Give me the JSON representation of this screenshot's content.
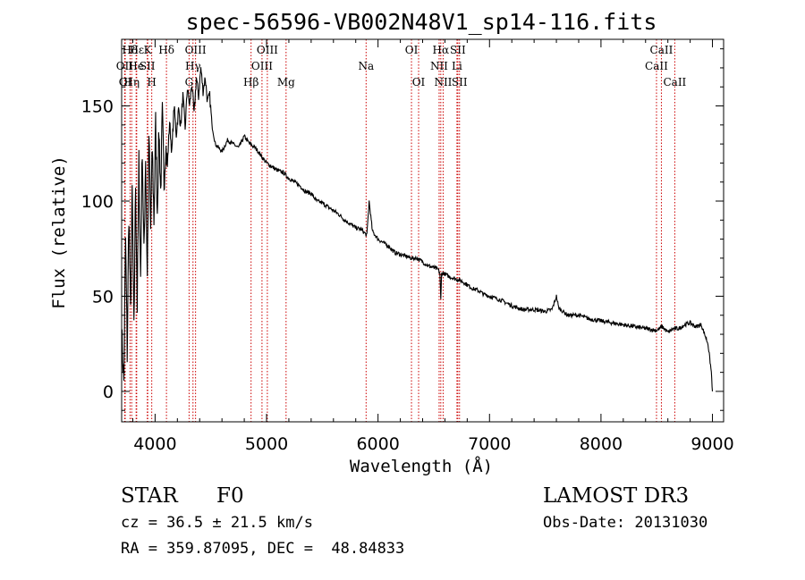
{
  "chart_data": {
    "type": "line",
    "title": "spec-56596-VB002N48V1_sp14-116.fits",
    "xlabel": "Wavelength (Å)",
    "ylabel": "Flux (relative)",
    "xlim": [
      3700,
      9100
    ],
    "ylim": [
      -16,
      185
    ],
    "xticks": [
      4000,
      5000,
      6000,
      7000,
      8000,
      9000
    ],
    "yticks": [
      0,
      50,
      100,
      150
    ],
    "series": [
      {
        "name": "flux",
        "x": [
          3700,
          3720,
          3735,
          3750,
          3765,
          3780,
          3795,
          3810,
          3825,
          3840,
          3855,
          3870,
          3885,
          3900,
          3915,
          3930,
          3945,
          3960,
          3975,
          3990,
          4005,
          4020,
          4035,
          4050,
          4065,
          4080,
          4095,
          4110,
          4130,
          4150,
          4170,
          4190,
          4210,
          4230,
          4250,
          4270,
          4290,
          4310,
          4330,
          4350,
          4370,
          4390,
          4410,
          4430,
          4450,
          4470,
          4490,
          4510,
          4540,
          4570,
          4600,
          4650,
          4700,
          4750,
          4800,
          4850,
          4900,
          4950,
          5000,
          5050,
          5100,
          5150,
          5200,
          5250,
          5300,
          5350,
          5400,
          5450,
          5500,
          5550,
          5600,
          5650,
          5700,
          5750,
          5800,
          5850,
          5900,
          5920,
          5950,
          6000,
          6050,
          6100,
          6150,
          6200,
          6250,
          6300,
          6350,
          6400,
          6450,
          6500,
          6540,
          6555,
          6563,
          6570,
          6590,
          6620,
          6650,
          6700,
          6750,
          6800,
          6850,
          6900,
          6950,
          7000,
          7100,
          7200,
          7300,
          7400,
          7500,
          7560,
          7600,
          7620,
          7660,
          7700,
          7800,
          7900,
          8000,
          8100,
          8200,
          8300,
          8400,
          8500,
          8550,
          8600,
          8650,
          8700,
          8750,
          8800,
          8850,
          8900,
          8930,
          8960,
          8990,
          9000
        ],
        "values": [
          30,
          5,
          80,
          20,
          95,
          40,
          105,
          30,
          110,
          45,
          120,
          60,
          130,
          70,
          125,
          60,
          135,
          85,
          128,
          90,
          140,
          95,
          138,
          105,
          145,
          110,
          130,
          118,
          142,
          125,
          150,
          135,
          148,
          140,
          155,
          138,
          160,
          150,
          162,
          145,
          165,
          155,
          170,
          158,
          165,
          152,
          155,
          140,
          130,
          128,
          126,
          132,
          130,
          128,
          134,
          130,
          128,
          124,
          120,
          118,
          116,
          115,
          112,
          110,
          108,
          105,
          104,
          100,
          99,
          97,
          95,
          93,
          90,
          88,
          86,
          85,
          82,
          100,
          84,
          80,
          78,
          76,
          73,
          72,
          71,
          70,
          70,
          68,
          66,
          65,
          64,
          62,
          48,
          62,
          62,
          61,
          60,
          59,
          58,
          56,
          54,
          53,
          51,
          50,
          48,
          45,
          43,
          43,
          42,
          43,
          50,
          44,
          42,
          40,
          40,
          38,
          37,
          36,
          35,
          34,
          33,
          32,
          34,
          31,
          33,
          33,
          35,
          36,
          34,
          35,
          30,
          25,
          10,
          0
        ]
      }
    ],
    "line_labels": [
      {
        "text": "Hδ",
        "x": 3775,
        "row": 0
      },
      {
        "text": "OII",
        "x": 3727,
        "row": 1
      },
      {
        "text": "OI",
        "x": 3732,
        "row": 2
      },
      {
        "text": "Hε",
        "x": 3835,
        "row": 0
      },
      {
        "text": "He",
        "x": 3830,
        "row": 1
      },
      {
        "text": "Hη",
        "x": 3790,
        "row": 2
      },
      {
        "text": "K",
        "x": 3934,
        "row": 0
      },
      {
        "text": "SII",
        "x": 3930,
        "row": 1
      },
      {
        "text": "H",
        "x": 3970,
        "row": 2
      },
      {
        "text": "Hδ",
        "x": 4102,
        "row": 0
      },
      {
        "text": "OIII",
        "x": 4363,
        "row": 0
      },
      {
        "text": "Hγ",
        "x": 4340,
        "row": 1
      },
      {
        "text": "G",
        "x": 4305,
        "row": 2
      },
      {
        "text": "OIII",
        "x": 5007,
        "row": 0
      },
      {
        "text": "OIII",
        "x": 4959,
        "row": 1
      },
      {
        "text": "Hβ",
        "x": 4861,
        "row": 2
      },
      {
        "text": "Mg",
        "x": 5175,
        "row": 2
      },
      {
        "text": "Na",
        "x": 5893,
        "row": 1
      },
      {
        "text": "OI",
        "x": 6300,
        "row": 0
      },
      {
        "text": "OI",
        "x": 6364,
        "row": 2
      },
      {
        "text": "Hα",
        "x": 6563,
        "row": 0
      },
      {
        "text": "SII",
        "x": 6716,
        "row": 0
      },
      {
        "text": "NII",
        "x": 6548,
        "row": 1
      },
      {
        "text": "Li",
        "x": 6708,
        "row": 1
      },
      {
        "text": "NII",
        "x": 6584,
        "row": 2
      },
      {
        "text": "SII",
        "x": 6731,
        "row": 2
      },
      {
        "text": "CaII",
        "x": 8542,
        "row": 0
      },
      {
        "text": "CaII",
        "x": 8498,
        "row": 1
      },
      {
        "text": "CaII",
        "x": 8662,
        "row": 2
      }
    ]
  },
  "info": {
    "class": "STAR",
    "subclass": "F0",
    "survey": "LAMOST DR3",
    "cz": "cz = 36.5 ± 21.5 km/s",
    "obs_date": "Obs-Date: 20131030",
    "radec": "RA = 359.87095, DEC =  48.84833"
  },
  "colors": {
    "line_marker": "#cc0000",
    "spectrum": "#000000"
  }
}
